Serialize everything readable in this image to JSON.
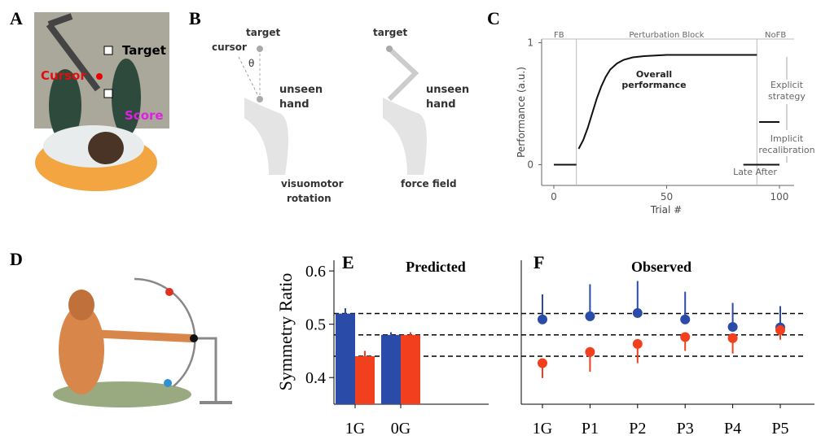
{
  "panels": {
    "A": {
      "label": "A",
      "target": "Target",
      "cursor": "Cursor",
      "score": "Score"
    },
    "B": {
      "label": "B",
      "left": {
        "target": "target",
        "cursor": "cursor",
        "angle": "θ",
        "hand": [
          "unseen",
          "hand"
        ],
        "caption": [
          "visuomotor",
          "rotation"
        ]
      },
      "right": {
        "target": "target",
        "hand": [
          "unseen",
          "hand"
        ],
        "caption": "force field"
      }
    },
    "D": {
      "label": "D"
    }
  },
  "chart_data": [
    {
      "type": "line",
      "panel_label": "C",
      "xlabel": "Trial #",
      "ylabel": "Performance (a.u.)",
      "xlim": [
        -5.4,
        106.5
      ],
      "ylim": [
        -0.17,
        1.03
      ],
      "xticks": [
        0,
        50,
        100
      ],
      "yticks": [
        0,
        1
      ],
      "blocks": [
        "FB",
        "Perturbation Block",
        "NoFB"
      ],
      "block_edges": [
        10,
        90
      ],
      "annotations": {
        "overall": [
          "Overall",
          "performance"
        ],
        "explicit": [
          "Explicit",
          "strategy"
        ],
        "implicit": [
          "Implicit",
          "recalibration"
        ],
        "late_after": "Late After"
      },
      "series": [
        {
          "color": "#111111",
          "x": [
            0,
            10
          ],
          "values": [
            0,
            0
          ]
        },
        {
          "color": "#111111",
          "x": [
            11,
            13,
            15,
            17,
            19,
            21,
            23,
            25,
            28,
            31,
            35,
            40,
            50,
            60,
            70,
            80,
            90
          ],
          "values": [
            0.13,
            0.2,
            0.3,
            0.42,
            0.54,
            0.64,
            0.72,
            0.78,
            0.83,
            0.86,
            0.88,
            0.89,
            0.9,
            0.9,
            0.9,
            0.9,
            0.9
          ]
        },
        {
          "color": "#111111",
          "x": [
            91,
            100
          ],
          "values": [
            0.35,
            0.35
          ]
        },
        {
          "color": "#111111",
          "x": [
            84,
            100
          ],
          "values": [
            0,
            0
          ]
        }
      ]
    },
    {
      "type": "bar",
      "panel_label": "E",
      "title": "Predicted",
      "ylabel": "Symmetry Ratio",
      "categories": [
        "1G",
        "0G"
      ],
      "ylim": [
        0.35,
        0.62
      ],
      "yticks": [
        0.4,
        0.5,
        0.6
      ],
      "reference_lines": [
        0.52,
        0.48,
        0.44
      ],
      "series": [
        {
          "color": "#2b4ba8",
          "values": [
            0.52,
            0.48
          ],
          "errors": [
            0.01,
            0.005
          ]
        },
        {
          "color": "#f2401f",
          "values": [
            0.44,
            0.48
          ],
          "errors": [
            0.01,
            0.005
          ]
        }
      ]
    },
    {
      "type": "dot",
      "panel_label": "F",
      "title": "Observed",
      "categories": [
        "1G",
        "P1",
        "P2",
        "P3",
        "P4",
        "P5"
      ],
      "ylim": [
        0.35,
        0.62
      ],
      "series": [
        {
          "color": "#2b4ba8",
          "error_direction": "up",
          "values": [
            0.509,
            0.515,
            0.521,
            0.509,
            0.495,
            0.494
          ],
          "errors": [
            0.047,
            0.06,
            0.06,
            0.052,
            0.045,
            0.04
          ]
        },
        {
          "color": "#f2401f",
          "error_direction": "down",
          "values": [
            0.427,
            0.448,
            0.463,
            0.476,
            0.474,
            0.489
          ],
          "errors": [
            0.028,
            0.037,
            0.036,
            0.026,
            0.029,
            0.018
          ]
        }
      ]
    }
  ]
}
